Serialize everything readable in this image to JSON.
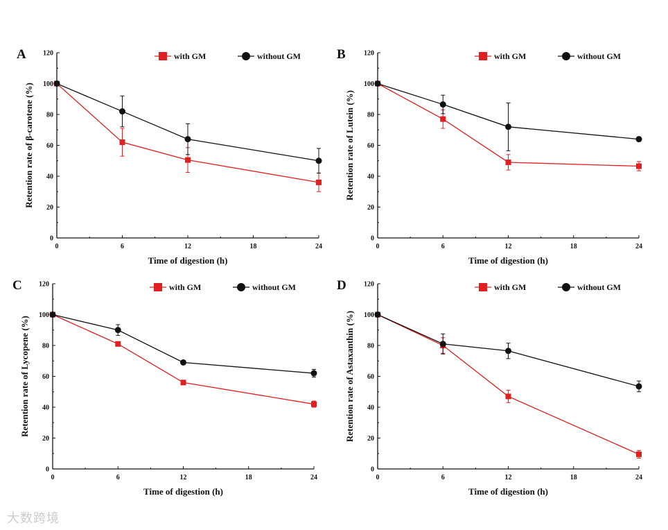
{
  "chart_data": [
    {
      "type": "line",
      "panel": "A",
      "x": [
        0,
        6,
        12,
        24
      ],
      "xlabel": "Time of digestion (h)",
      "ylabel": "Retention rate of β-carotene (%)",
      "xlim": [
        0,
        24
      ],
      "ylim": [
        0,
        120
      ],
      "xticks": [
        "0",
        "6",
        "12",
        "18",
        "24"
      ],
      "yticks": [
        "0",
        "20",
        "40",
        "60",
        "80",
        "100",
        "120"
      ],
      "legend_position": "top-right",
      "series": [
        {
          "name": "with GM",
          "color": "#e02020",
          "marker": "square",
          "values": [
            100,
            62,
            50.5,
            36
          ],
          "errors": [
            0,
            9,
            8,
            6
          ]
        },
        {
          "name": "without GM",
          "color": "#111111",
          "marker": "circle",
          "values": [
            100,
            82,
            64,
            50
          ],
          "errors": [
            0,
            10,
            10,
            8
          ]
        }
      ]
    },
    {
      "type": "line",
      "panel": "B",
      "x": [
        0,
        6,
        12,
        24
      ],
      "xlabel": "Time of digestion (h)",
      "ylabel": "Retention rate of Lutein (%)",
      "xlim": [
        0,
        24
      ],
      "ylim": [
        0,
        120
      ],
      "xticks": [
        "0",
        "6",
        "12",
        "18",
        "24"
      ],
      "yticks": [
        "0",
        "20",
        "40",
        "60",
        "80",
        "100",
        "120"
      ],
      "legend_position": "top-right",
      "series": [
        {
          "name": "with GM",
          "color": "#e02020",
          "marker": "square",
          "values": [
            100,
            77,
            49,
            46.5
          ],
          "errors": [
            0,
            6,
            5,
            3
          ]
        },
        {
          "name": "without GM",
          "color": "#111111",
          "marker": "circle",
          "values": [
            100,
            86.5,
            72,
            64
          ],
          "errors": [
            0,
            6,
            15.5,
            1.5
          ]
        }
      ]
    },
    {
      "type": "line",
      "panel": "C",
      "x": [
        0,
        6,
        12,
        24
      ],
      "xlabel": "Time of digestion (h)",
      "ylabel": "Retention rate of Lycopene (%)",
      "xlim": [
        0,
        24
      ],
      "ylim": [
        0,
        120
      ],
      "xticks": [
        "0",
        "6",
        "12",
        "18",
        "24"
      ],
      "yticks": [
        "0",
        "20",
        "40",
        "60",
        "80",
        "100",
        "120"
      ],
      "legend_position": "top-right",
      "series": [
        {
          "name": "with GM",
          "color": "#e02020",
          "marker": "square",
          "values": [
            100,
            81,
            56,
            42
          ],
          "errors": [
            0,
            1,
            1,
            2
          ]
        },
        {
          "name": "without GM",
          "color": "#111111",
          "marker": "circle",
          "values": [
            100,
            90,
            69,
            62
          ],
          "errors": [
            0,
            3.5,
            1,
            2.5
          ]
        }
      ]
    },
    {
      "type": "line",
      "panel": "D",
      "x": [
        0,
        6,
        12,
        24
      ],
      "xlabel": "Time of digestion (h)",
      "ylabel": "Retention rate of Astaxanthin (%)",
      "xlim": [
        0,
        24
      ],
      "ylim": [
        0,
        120
      ],
      "xticks": [
        "0",
        "6",
        "12",
        "18",
        "24"
      ],
      "yticks": [
        "0",
        "20",
        "40",
        "60",
        "80",
        "100",
        "120"
      ],
      "legend_position": "top-right",
      "series": [
        {
          "name": "with GM",
          "color": "#e02020",
          "marker": "square",
          "values": [
            100,
            80,
            47,
            9.5
          ],
          "errors": [
            0,
            5,
            4,
            2.5
          ]
        },
        {
          "name": "without GM",
          "color": "#111111",
          "marker": "circle",
          "values": [
            100,
            81,
            76.5,
            53.5
          ],
          "errors": [
            0,
            6.5,
            5,
            3.5
          ]
        }
      ]
    }
  ],
  "watermark": "大数跨境"
}
